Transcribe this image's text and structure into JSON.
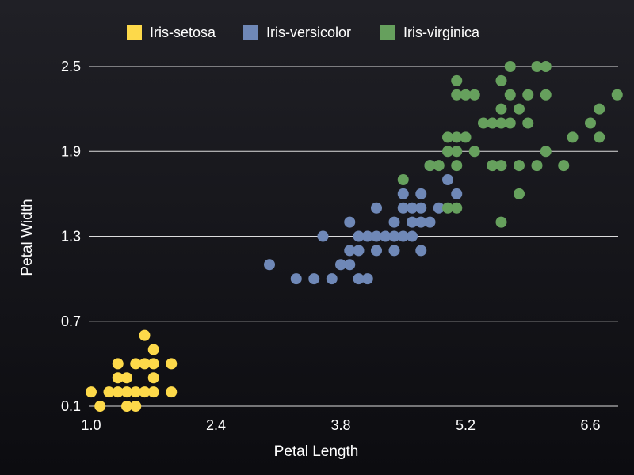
{
  "chart_data": {
    "type": "scatter",
    "xlabel": "Petal Length",
    "ylabel": "Petal Width",
    "xlim": [
      1.0,
      7.0
    ],
    "ylim": [
      0.1,
      2.5
    ],
    "xticks": [
      "1.0",
      "2.4",
      "3.8",
      "5.2",
      "6.6"
    ],
    "yticks": [
      "0.1",
      "0.7",
      "1.3",
      "1.9",
      "2.5"
    ],
    "grid": "horizontal",
    "legend_position": "top",
    "series": [
      {
        "name": "Iris-setosa",
        "color": "#fdd94a",
        "points": [
          [
            1.0,
            0.2
          ],
          [
            1.1,
            0.1
          ],
          [
            1.2,
            0.2
          ],
          [
            1.3,
            0.2
          ],
          [
            1.3,
            0.3
          ],
          [
            1.3,
            0.4
          ],
          [
            1.4,
            0.1
          ],
          [
            1.4,
            0.2
          ],
          [
            1.4,
            0.3
          ],
          [
            1.5,
            0.1
          ],
          [
            1.5,
            0.2
          ],
          [
            1.5,
            0.4
          ],
          [
            1.6,
            0.2
          ],
          [
            1.6,
            0.4
          ],
          [
            1.6,
            0.6
          ],
          [
            1.7,
            0.2
          ],
          [
            1.7,
            0.3
          ],
          [
            1.7,
            0.4
          ],
          [
            1.7,
            0.5
          ],
          [
            1.9,
            0.2
          ],
          [
            1.9,
            0.4
          ]
        ]
      },
      {
        "name": "Iris-versicolor",
        "color": "#6f88b7",
        "points": [
          [
            3.0,
            1.1
          ],
          [
            3.3,
            1.0
          ],
          [
            3.5,
            1.0
          ],
          [
            3.6,
            1.3
          ],
          [
            3.7,
            1.0
          ],
          [
            3.8,
            1.1
          ],
          [
            3.9,
            1.1
          ],
          [
            3.9,
            1.2
          ],
          [
            3.9,
            1.4
          ],
          [
            4.0,
            1.0
          ],
          [
            4.0,
            1.2
          ],
          [
            4.0,
            1.3
          ],
          [
            4.1,
            1.0
          ],
          [
            4.1,
            1.3
          ],
          [
            4.2,
            1.2
          ],
          [
            4.2,
            1.3
          ],
          [
            4.2,
            1.5
          ],
          [
            4.3,
            1.3
          ],
          [
            4.4,
            1.2
          ],
          [
            4.4,
            1.3
          ],
          [
            4.4,
            1.4
          ],
          [
            4.5,
            1.3
          ],
          [
            4.5,
            1.5
          ],
          [
            4.5,
            1.6
          ],
          [
            4.6,
            1.3
          ],
          [
            4.6,
            1.4
          ],
          [
            4.6,
            1.5
          ],
          [
            4.7,
            1.2
          ],
          [
            4.7,
            1.4
          ],
          [
            4.7,
            1.5
          ],
          [
            4.7,
            1.6
          ],
          [
            4.8,
            1.4
          ],
          [
            4.8,
            1.8
          ],
          [
            4.9,
            1.5
          ],
          [
            5.0,
            1.7
          ],
          [
            5.1,
            1.6
          ]
        ]
      },
      {
        "name": "Iris-virginica",
        "color": "#66a05d",
        "points": [
          [
            4.5,
            1.7
          ],
          [
            4.8,
            1.8
          ],
          [
            4.9,
            1.8
          ],
          [
            5.0,
            1.5
          ],
          [
            5.0,
            1.9
          ],
          [
            5.0,
            2.0
          ],
          [
            5.1,
            1.5
          ],
          [
            5.1,
            1.8
          ],
          [
            5.1,
            1.9
          ],
          [
            5.1,
            2.0
          ],
          [
            5.1,
            2.3
          ],
          [
            5.1,
            2.4
          ],
          [
            5.2,
            2.0
          ],
          [
            5.2,
            2.3
          ],
          [
            5.3,
            1.9
          ],
          [
            5.3,
            2.3
          ],
          [
            5.4,
            2.1
          ],
          [
            5.5,
            1.8
          ],
          [
            5.5,
            2.1
          ],
          [
            5.6,
            1.4
          ],
          [
            5.6,
            1.8
          ],
          [
            5.6,
            2.1
          ],
          [
            5.6,
            2.2
          ],
          [
            5.6,
            2.4
          ],
          [
            5.7,
            2.1
          ],
          [
            5.7,
            2.3
          ],
          [
            5.7,
            2.5
          ],
          [
            5.8,
            1.6
          ],
          [
            5.8,
            1.8
          ],
          [
            5.8,
            2.2
          ],
          [
            5.9,
            2.1
          ],
          [
            5.9,
            2.3
          ],
          [
            6.0,
            1.8
          ],
          [
            6.0,
            2.5
          ],
          [
            6.1,
            1.9
          ],
          [
            6.1,
            2.3
          ],
          [
            6.1,
            2.5
          ],
          [
            6.3,
            1.8
          ],
          [
            6.4,
            2.0
          ],
          [
            6.6,
            2.1
          ],
          [
            6.7,
            2.0
          ],
          [
            6.7,
            2.2
          ],
          [
            6.9,
            2.3
          ]
        ]
      }
    ]
  }
}
